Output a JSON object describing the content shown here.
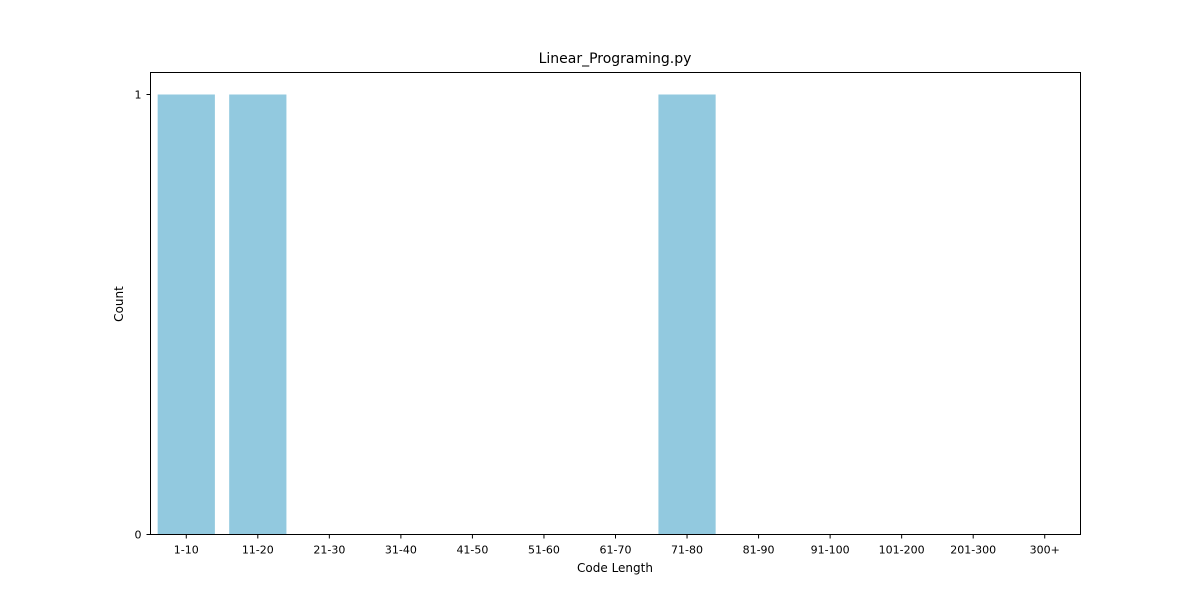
{
  "chart_data": {
    "type": "bar",
    "title": "Linear_Programing.py",
    "xlabel": "Code Length",
    "ylabel": "Count",
    "categories": [
      "1-10",
      "11-20",
      "21-30",
      "31-40",
      "41-50",
      "51-60",
      "61-70",
      "71-80",
      "81-90",
      "91-100",
      "101-200",
      "201-300",
      "300+"
    ],
    "values": [
      1,
      1,
      0,
      0,
      0,
      0,
      0,
      1,
      0,
      0,
      0,
      0,
      0
    ],
    "yticks": [
      0,
      1
    ],
    "ylim": [
      0,
      1.05
    ],
    "grid": false,
    "legend": "none",
    "bar_color": "#92c9df",
    "axis_color": "#000000"
  }
}
